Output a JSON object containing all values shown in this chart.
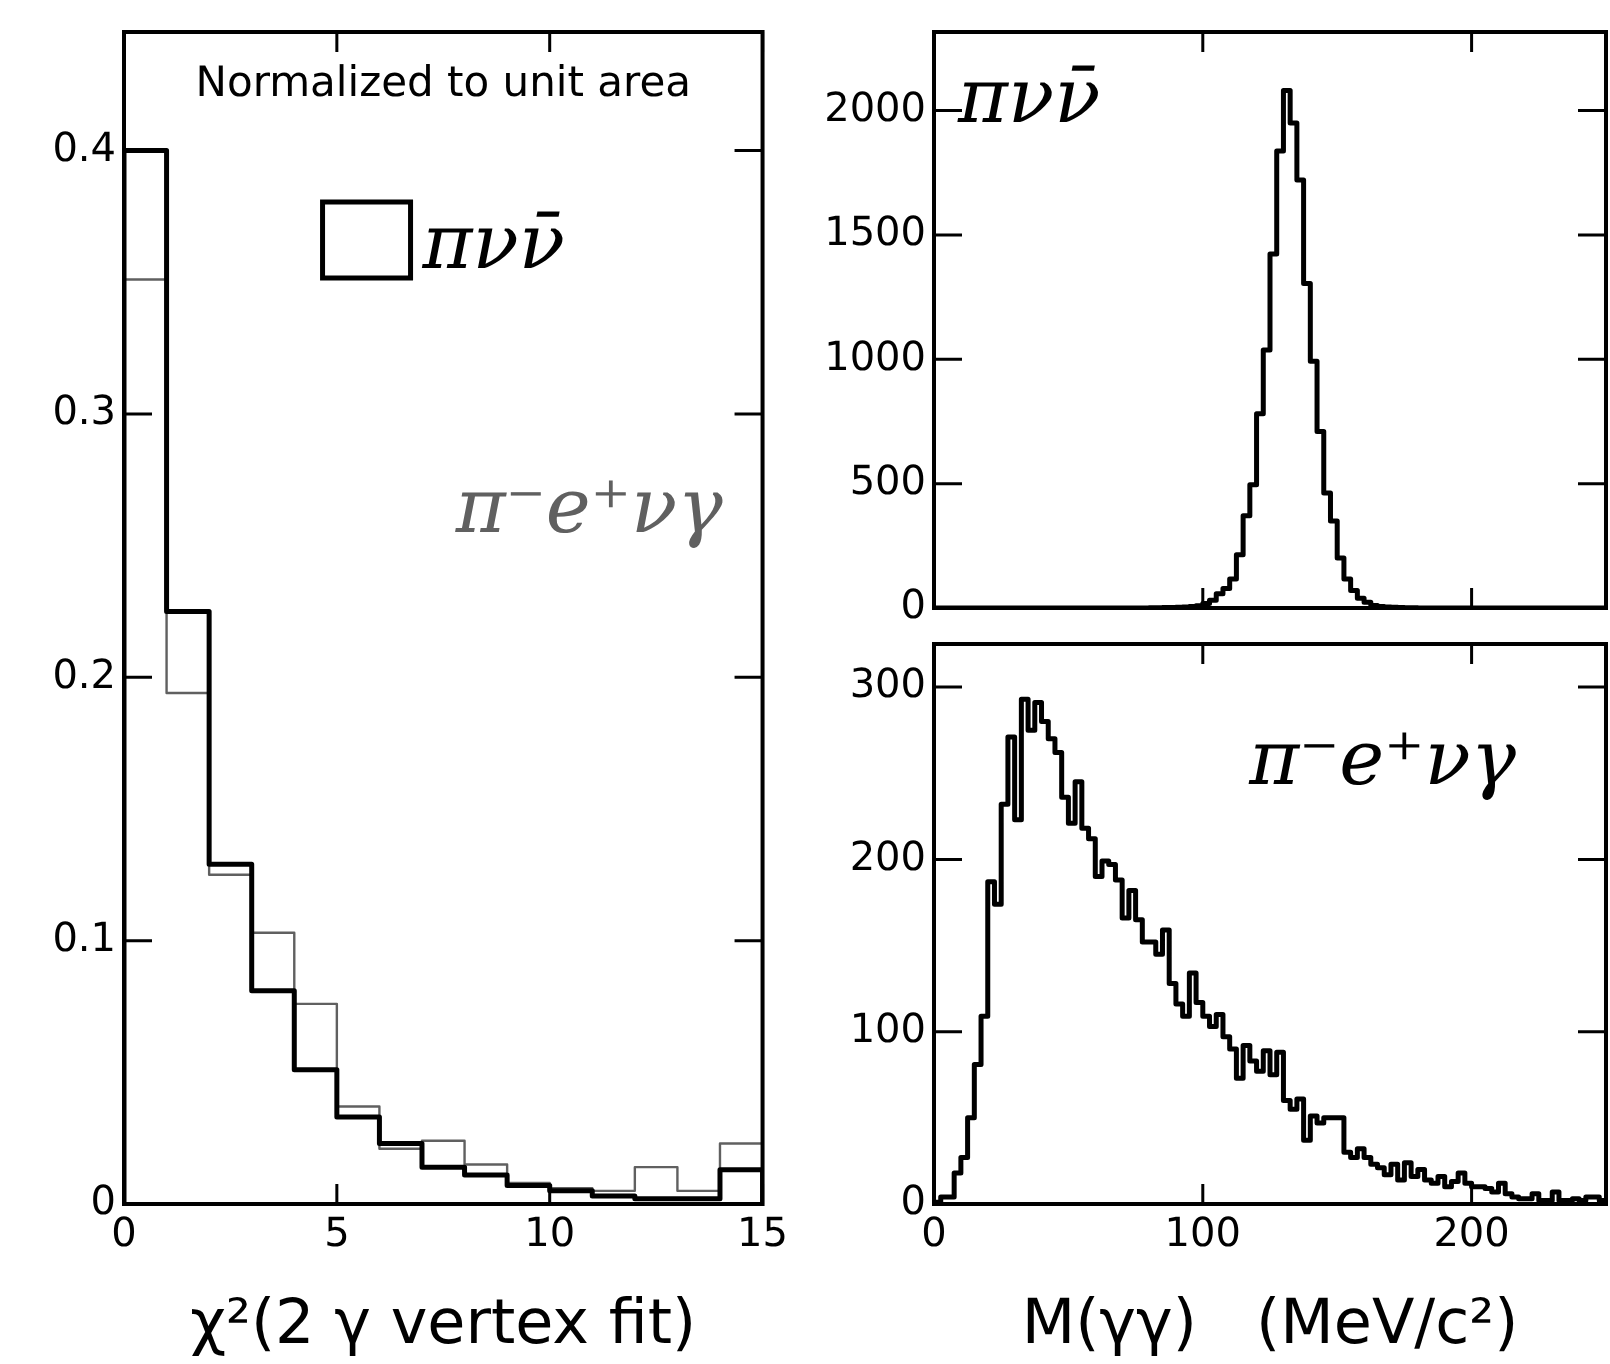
{
  "chart_data": [
    {
      "type": "histogram",
      "xlabel": "χ²(2 γ vertex fit)",
      "annotations": [
        "Normalized to unit area"
      ],
      "bins": [
        0,
        1,
        2,
        3,
        4,
        5,
        6,
        7,
        8,
        9,
        10,
        11,
        12,
        13,
        14,
        15
      ],
      "xlim": [
        0,
        15
      ],
      "xticks": [
        0,
        5,
        10,
        15
      ],
      "ylim": [
        0,
        0.445
      ],
      "yticks": [
        0,
        0.1,
        0.2,
        0.3,
        0.4
      ],
      "legend": "top right",
      "grid": false,
      "series": [
        {
          "name": "πνν̄",
          "color": "#000000",
          "values": [
            0.4,
            0.225,
            0.129,
            0.081,
            0.051,
            0.033,
            0.023,
            0.014,
            0.011,
            0.007,
            0.005,
            0.003,
            0.002,
            0.002,
            0.013
          ]
        },
        {
          "name": "π⁻e⁺νγ",
          "color": "#606060",
          "values": [
            0.351,
            0.194,
            0.125,
            0.103,
            0.076,
            0.037,
            0.021,
            0.024,
            0.015,
            0.008,
            0.006,
            0.005,
            0.014,
            0.005,
            0.023
          ]
        }
      ]
    },
    {
      "type": "histogram",
      "tick_labels": "y",
      "bins": [
        0,
        2.5,
        5,
        7.5,
        10,
        12.5,
        15,
        17.5,
        20,
        22.5,
        25,
        27.5,
        30,
        32.5,
        35,
        37.5,
        40,
        42.5,
        45,
        47.5,
        50,
        52.5,
        55,
        57.5,
        60,
        62.5,
        65,
        67.5,
        70,
        72.5,
        75,
        77.5,
        80,
        82.5,
        85,
        87.5,
        90,
        92.5,
        95,
        97.5,
        100,
        102.5,
        105,
        107.5,
        110,
        112.5,
        115,
        117.5,
        120,
        122.5,
        125,
        127.5,
        130,
        132.5,
        135,
        137.5,
        140,
        142.5,
        145,
        147.5,
        150,
        152.5,
        155,
        157.5,
        160,
        162.5,
        165,
        167.5,
        170,
        172.5,
        175,
        177.5,
        180,
        182.5,
        185,
        187.5,
        190,
        192.5,
        195,
        197.5,
        200,
        202.5,
        205,
        207.5,
        210,
        212.5,
        215,
        217.5,
        220,
        222.5,
        225,
        227.5,
        230,
        232.5,
        235,
        237.5,
        240,
        242.5,
        245,
        247.5,
        250
      ],
      "xlim": [
        0,
        250
      ],
      "xticks": [
        0,
        100,
        200
      ],
      "ylim": [
        0,
        2316
      ],
      "yticks": [
        0,
        500,
        1000,
        1500,
        2000
      ],
      "grid": false,
      "series": [
        {
          "name": "πνν̄",
          "color": "#000000",
          "values": [
            0,
            0,
            0,
            0,
            0,
            0,
            0,
            0,
            0,
            0,
            0,
            0,
            0,
            0,
            0,
            0,
            0,
            0,
            0,
            0,
            0,
            0,
            0,
            0,
            0,
            0,
            0,
            0,
            0,
            0,
            0,
            0,
            1,
            1,
            2,
            2,
            3,
            4,
            6,
            9,
            18,
            31,
            57,
            78,
            117,
            214,
            371,
            496,
            781,
            1037,
            1423,
            1838,
            2081,
            1950,
            1721,
            1305,
            992,
            710,
            462,
            350,
            201,
            117,
            70,
            39,
            23,
            10,
            6,
            4,
            3,
            2,
            1,
            1,
            0,
            0,
            0,
            0,
            0,
            0,
            0,
            0,
            0,
            0,
            0,
            0,
            0,
            0,
            0,
            0,
            0,
            0,
            0,
            0,
            0,
            0,
            0,
            0,
            0,
            0,
            0,
            0
          ]
        }
      ]
    },
    {
      "type": "histogram",
      "xlabel": "M(γγ)   (MeV/c²)",
      "bins": [
        0,
        2.5,
        5,
        7.5,
        10,
        12.5,
        15,
        17.5,
        20,
        22.5,
        25,
        27.5,
        30,
        32.5,
        35,
        37.5,
        40,
        42.5,
        45,
        47.5,
        50,
        52.5,
        55,
        57.5,
        60,
        62.5,
        65,
        67.5,
        70,
        72.5,
        75,
        77.5,
        80,
        82.5,
        85,
        87.5,
        90,
        92.5,
        95,
        97.5,
        100,
        102.5,
        105,
        107.5,
        110,
        112.5,
        115,
        117.5,
        120,
        122.5,
        125,
        127.5,
        130,
        132.5,
        135,
        137.5,
        140,
        142.5,
        145,
        147.5,
        150,
        152.5,
        155,
        157.5,
        160,
        162.5,
        165,
        167.5,
        170,
        172.5,
        175,
        177.5,
        180,
        182.5,
        185,
        187.5,
        190,
        192.5,
        195,
        197.5,
        200,
        202.5,
        205,
        207.5,
        210,
        212.5,
        215,
        217.5,
        220,
        222.5,
        225,
        227.5,
        230,
        232.5,
        235,
        237.5,
        240,
        242.5,
        245,
        247.5,
        250
      ],
      "xlim": [
        0,
        250
      ],
      "xticks": [
        0,
        100,
        200
      ],
      "ylim": [
        0,
        325
      ],
      "yticks": [
        0,
        100,
        200,
        300
      ],
      "grid": false,
      "series": [
        {
          "name": "π⁻e⁺νγ",
          "color": "#000000",
          "values": [
            1,
            4,
            4,
            18,
            27,
            50,
            81,
            109,
            187,
            174,
            232,
            271,
            223,
            293,
            275,
            291,
            280,
            270,
            262,
            236,
            221,
            245,
            218,
            212,
            190,
            199,
            197,
            188,
            166,
            182,
            165,
            152,
            152,
            145,
            159,
            128,
            116,
            109,
            134,
            117,
            109,
            103,
            110,
            97,
            90,
            73,
            92,
            83,
            77,
            89,
            75,
            88,
            60,
            55,
            61,
            37,
            51,
            47,
            50,
            50,
            50,
            30,
            27,
            32,
            27,
            23,
            21,
            17,
            23,
            14,
            24,
            16,
            20,
            14,
            12,
            16,
            10,
            13,
            18,
            12,
            10,
            10,
            9,
            7,
            12,
            6,
            4,
            3,
            3,
            6,
            2,
            2,
            7,
            2,
            2,
            3,
            2,
            4,
            4,
            2
          ]
        }
      ]
    }
  ]
}
